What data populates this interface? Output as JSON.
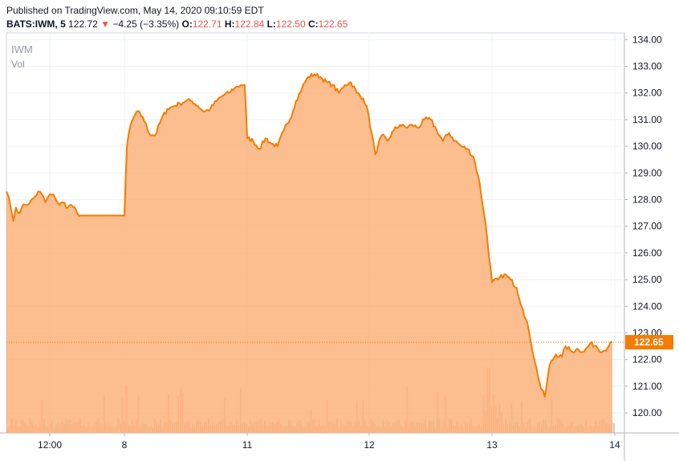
{
  "header": {
    "published": "Published on TradingView.com, May 14, 2020 09:10:59 EDT",
    "symbol": "BATS:IWM, 5",
    "last": "122.72",
    "arrow": "▼",
    "change": "−4.25 (−3.35%)",
    "o_label": "O:",
    "o_value": "122.71",
    "h_label": "H:",
    "h_value": "122.84",
    "l_label": "L:",
    "l_value": "122.50",
    "c_label": "C:",
    "c_value": "122.65"
  },
  "legend": {
    "symbol": "IWM",
    "vol": "Vol"
  },
  "chart_data": {
    "type": "area",
    "line_color": "#f57c00",
    "fill_color": "#fbb27b",
    "ylim": [
      119.25,
      134.25
    ],
    "y_ticks": [
      "134.00",
      "133.00",
      "132.00",
      "131.00",
      "130.00",
      "129.00",
      "128.00",
      "127.00",
      "126.00",
      "125.00",
      "124.00",
      "123.00",
      "122.00",
      "121.00",
      "120.00"
    ],
    "x_ticks": [
      "12:00",
      "8",
      "11",
      "12",
      "13",
      "14"
    ],
    "last_price": 122.65,
    "last_price_label": "122.65",
    "series": [
      {
        "points": [
          [
            0,
            128.3
          ],
          [
            0.02,
            128.1
          ],
          [
            0.04,
            127.6
          ],
          [
            0.06,
            127.2
          ],
          [
            0.08,
            127.7
          ],
          [
            0.1,
            127.5
          ],
          [
            0.13,
            127.7
          ],
          [
            0.16,
            127.8
          ],
          [
            0.2,
            127.9
          ],
          [
            0.24,
            128.1
          ],
          [
            0.27,
            128.3
          ],
          [
            0.3,
            128.2
          ],
          [
            0.33,
            127.9
          ],
          [
            0.37,
            128.2
          ],
          [
            0.41,
            128.1
          ],
          [
            0.45,
            127.8
          ],
          [
            0.48,
            127.9
          ],
          [
            0.52,
            127.7
          ],
          [
            0.55,
            127.8
          ],
          [
            0.6,
            127.5
          ],
          [
            0.63,
            127.4
          ],
          [
            1.0,
            127.4
          ],
          [
            1.02,
            130.0
          ],
          [
            1.05,
            130.8
          ],
          [
            1.1,
            131.3
          ],
          [
            1.15,
            131.1
          ],
          [
            1.2,
            130.5
          ],
          [
            1.25,
            130.4
          ],
          [
            1.3,
            131.0
          ],
          [
            1.35,
            131.4
          ],
          [
            1.4,
            131.5
          ],
          [
            1.45,
            131.6
          ],
          [
            1.5,
            131.7
          ],
          [
            1.55,
            131.7
          ],
          [
            1.6,
            131.5
          ],
          [
            1.65,
            131.3
          ],
          [
            1.7,
            131.4
          ],
          [
            1.75,
            131.7
          ],
          [
            1.8,
            131.9
          ],
          [
            1.85,
            132.0
          ],
          [
            1.9,
            132.2
          ],
          [
            1.95,
            132.3
          ],
          [
            1.98,
            132.3
          ],
          [
            2.0,
            130.3
          ],
          [
            2.05,
            130.2
          ],
          [
            2.1,
            129.9
          ],
          [
            2.15,
            130.3
          ],
          [
            2.2,
            130.1
          ],
          [
            2.25,
            130.0
          ],
          [
            2.3,
            130.6
          ],
          [
            2.35,
            131.0
          ],
          [
            2.4,
            131.7
          ],
          [
            2.45,
            132.2
          ],
          [
            2.5,
            132.6
          ],
          [
            2.55,
            132.7
          ],
          [
            2.6,
            132.6
          ],
          [
            2.65,
            132.4
          ],
          [
            2.7,
            132.3
          ],
          [
            2.75,
            132.0
          ],
          [
            2.8,
            132.3
          ],
          [
            2.85,
            132.4
          ],
          [
            2.9,
            132.0
          ],
          [
            2.95,
            131.8
          ],
          [
            2.98,
            131.5
          ],
          [
            3.05,
            129.7
          ],
          [
            3.1,
            130.4
          ],
          [
            3.15,
            130.2
          ],
          [
            3.2,
            130.6
          ],
          [
            3.25,
            130.8
          ],
          [
            3.3,
            130.7
          ],
          [
            3.35,
            130.8
          ],
          [
            3.4,
            130.7
          ],
          [
            3.45,
            131.0
          ],
          [
            3.5,
            131.0
          ],
          [
            3.55,
            130.6
          ],
          [
            3.6,
            130.2
          ],
          [
            3.65,
            130.5
          ],
          [
            3.7,
            130.2
          ],
          [
            3.75,
            130.0
          ],
          [
            3.8,
            129.9
          ],
          [
            3.85,
            129.6
          ],
          [
            3.9,
            128.6
          ],
          [
            3.95,
            127.0
          ],
          [
            4.0,
            124.9
          ],
          [
            4.05,
            125.0
          ],
          [
            4.1,
            125.2
          ],
          [
            4.15,
            125.0
          ],
          [
            4.2,
            124.7
          ],
          [
            4.25,
            123.9
          ],
          [
            4.3,
            123.1
          ],
          [
            4.35,
            121.9
          ],
          [
            4.4,
            120.9
          ],
          [
            4.43,
            120.6
          ],
          [
            4.47,
            121.8
          ],
          [
            4.52,
            122.2
          ],
          [
            4.57,
            122.1
          ],
          [
            4.6,
            122.5
          ],
          [
            4.65,
            122.3
          ],
          [
            4.7,
            122.4
          ],
          [
            4.75,
            122.3
          ],
          [
            4.8,
            122.6
          ],
          [
            4.85,
            122.5
          ],
          [
            4.9,
            122.3
          ],
          [
            4.95,
            122.5
          ],
          [
            4.98,
            122.65
          ]
        ]
      }
    ]
  }
}
